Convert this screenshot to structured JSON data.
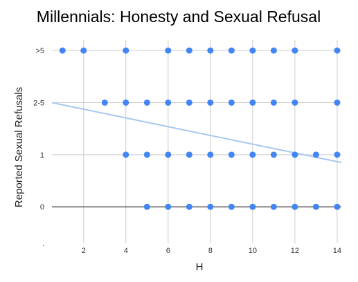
{
  "chart_data": {
    "type": "scatter",
    "title": "Millennials: Honesty and Sexual Refusal",
    "xlabel": "H",
    "ylabel": "Reported Sexual Refusals",
    "xlim": [
      0.5,
      14.2
    ],
    "ylim": [
      -0.7,
      3.2
    ],
    "x_ticks": [
      2,
      4,
      6,
      8,
      10,
      12,
      14
    ],
    "y_ticks": [
      {
        "value": 3,
        "label": ">5"
      },
      {
        "value": 2,
        "label": "2-5"
      },
      {
        "value": 1,
        "label": "1"
      },
      {
        "value": 0,
        "label": "0"
      },
      {
        "value": -0.7,
        "label": "."
      }
    ],
    "grid": true,
    "legend": "none",
    "point_color": "#4285f4",
    "trendline_color": "#a8c7f0",
    "baseline_color": "#000000",
    "points": [
      {
        "x": 1,
        "y": 3
      },
      {
        "x": 2,
        "y": 3
      },
      {
        "x": 4,
        "y": 3
      },
      {
        "x": 6,
        "y": 3
      },
      {
        "x": 7,
        "y": 3
      },
      {
        "x": 8,
        "y": 3
      },
      {
        "x": 9,
        "y": 3
      },
      {
        "x": 10,
        "y": 3
      },
      {
        "x": 11,
        "y": 3
      },
      {
        "x": 12,
        "y": 3
      },
      {
        "x": 14,
        "y": 3
      },
      {
        "x": 3,
        "y": 2
      },
      {
        "x": 4,
        "y": 2
      },
      {
        "x": 5,
        "y": 2
      },
      {
        "x": 6,
        "y": 2
      },
      {
        "x": 7,
        "y": 2
      },
      {
        "x": 8,
        "y": 2
      },
      {
        "x": 9,
        "y": 2
      },
      {
        "x": 10,
        "y": 2
      },
      {
        "x": 11,
        "y": 2
      },
      {
        "x": 12,
        "y": 2
      },
      {
        "x": 14,
        "y": 2
      },
      {
        "x": 4,
        "y": 1
      },
      {
        "x": 5,
        "y": 1
      },
      {
        "x": 6,
        "y": 1
      },
      {
        "x": 7,
        "y": 1
      },
      {
        "x": 8,
        "y": 1
      },
      {
        "x": 9,
        "y": 1
      },
      {
        "x": 10,
        "y": 1
      },
      {
        "x": 11,
        "y": 1
      },
      {
        "x": 12,
        "y": 1
      },
      {
        "x": 13,
        "y": 1
      },
      {
        "x": 14,
        "y": 1
      },
      {
        "x": 5,
        "y": 0
      },
      {
        "x": 6,
        "y": 0
      },
      {
        "x": 7,
        "y": 0
      },
      {
        "x": 8,
        "y": 0
      },
      {
        "x": 9,
        "y": 0
      },
      {
        "x": 10,
        "y": 0
      },
      {
        "x": 11,
        "y": 0
      },
      {
        "x": 12,
        "y": 0
      },
      {
        "x": 13,
        "y": 0
      },
      {
        "x": 14,
        "y": 0
      }
    ],
    "trendline": {
      "x": [
        0.5,
        14.2
      ],
      "y": [
        2.0,
        0.85
      ]
    }
  }
}
